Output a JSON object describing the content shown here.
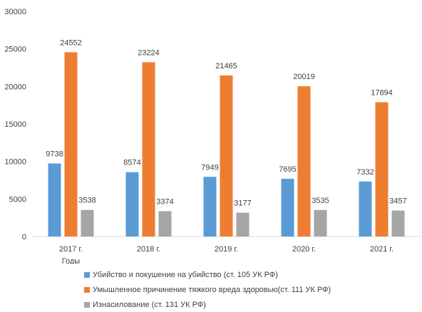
{
  "chart_data": {
    "type": "bar",
    "categories": [
      "2017 г.",
      "2018 г.",
      "2019 г.",
      "2020 г.",
      "2021 г."
    ],
    "xlabel": "Годы",
    "ylabel": "",
    "ylim": [
      0,
      30000
    ],
    "yticks": [
      "0",
      "5000",
      "10000",
      "15000",
      "20000",
      "25000",
      "30000"
    ],
    "grid": false,
    "legend_position": "bottom",
    "series": [
      {
        "name": "Убийство и покушение на убийство (ст. 105 УК РФ)",
        "color": "#5B9BD5",
        "values": [
          9738,
          8574,
          7949,
          7695,
          7332
        ]
      },
      {
        "name": "Умышленное причинение тяжкого вреда здоровью(ст. 111 УК РФ)",
        "color": "#ED7D31",
        "values": [
          24552,
          23224,
          21465,
          20019,
          17894
        ]
      },
      {
        "name": "Изнасилование (ст. 131 УК РФ)",
        "color": "#A5A5A5",
        "values": [
          3538,
          3374,
          3177,
          3535,
          3457
        ]
      }
    ]
  }
}
